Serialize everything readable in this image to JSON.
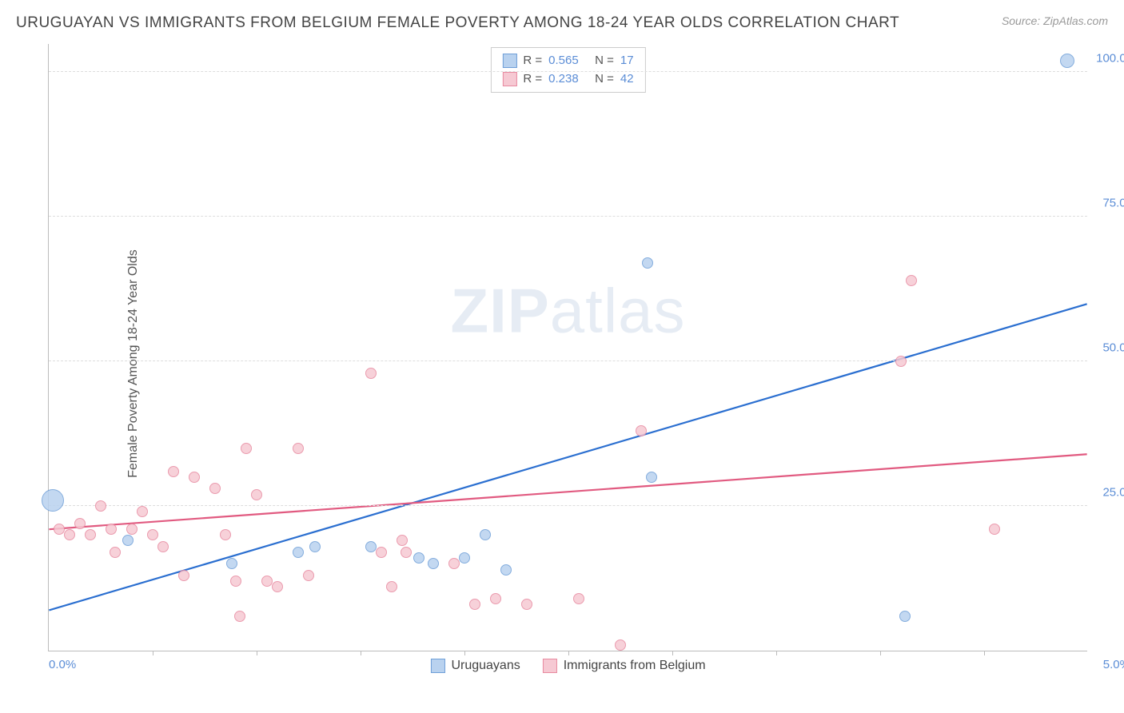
{
  "title": "URUGUAYAN VS IMMIGRANTS FROM BELGIUM FEMALE POVERTY AMONG 18-24 YEAR OLDS CORRELATION CHART",
  "source": "Source: ZipAtlas.com",
  "ylabel": "Female Poverty Among 18-24 Year Olds",
  "watermark_a": "ZIP",
  "watermark_b": "atlas",
  "chart": {
    "type": "scatter",
    "xlim": [
      0,
      5
    ],
    "ylim": [
      0,
      105
    ],
    "x_min_label": "0.0%",
    "x_max_label": "5.0%",
    "y_ticks": [
      25,
      50,
      75,
      100
    ],
    "y_tick_labels": [
      "25.0%",
      "50.0%",
      "75.0%",
      "100.0%"
    ],
    "x_minor_ticks": [
      0.5,
      1.0,
      1.5,
      2.0,
      2.5,
      3.0,
      3.5,
      4.0,
      4.5
    ],
    "background_color": "#ffffff",
    "grid_color": "#dddddd",
    "axis_color": "#bbbbbb",
    "tick_label_color": "#5b8dd6",
    "series": [
      {
        "name": "Uruguayans",
        "fill": "#b9d2ef",
        "stroke": "#6f9fd8",
        "trend_color": "#2b6fd0",
        "r_value": "0.565",
        "n_value": "17",
        "trend": {
          "x1": 0,
          "y1": 7,
          "x2": 5,
          "y2": 60
        },
        "points": [
          {
            "x": 0.02,
            "y": 26,
            "r": 14
          },
          {
            "x": 0.38,
            "y": 19,
            "r": 7
          },
          {
            "x": 0.88,
            "y": 15,
            "r": 7
          },
          {
            "x": 1.2,
            "y": 17,
            "r": 7
          },
          {
            "x": 1.28,
            "y": 18,
            "r": 7
          },
          {
            "x": 1.55,
            "y": 18,
            "r": 7
          },
          {
            "x": 1.78,
            "y": 16,
            "r": 7
          },
          {
            "x": 1.85,
            "y": 15,
            "r": 7
          },
          {
            "x": 2.0,
            "y": 16,
            "r": 7
          },
          {
            "x": 2.1,
            "y": 20,
            "r": 7
          },
          {
            "x": 2.2,
            "y": 14,
            "r": 7
          },
          {
            "x": 2.9,
            "y": 30,
            "r": 7
          },
          {
            "x": 2.88,
            "y": 67,
            "r": 7
          },
          {
            "x": 4.12,
            "y": 6,
            "r": 7
          },
          {
            "x": 4.9,
            "y": 102,
            "r": 9
          }
        ]
      },
      {
        "name": "Immigrants from Belgium",
        "fill": "#f6c9d3",
        "stroke": "#e88aa0",
        "trend_color": "#e15a80",
        "r_value": "0.238",
        "n_value": "42",
        "trend": {
          "x1": 0,
          "y1": 21,
          "x2": 5,
          "y2": 34
        },
        "points": [
          {
            "x": 0.05,
            "y": 21,
            "r": 7
          },
          {
            "x": 0.1,
            "y": 20,
            "r": 7
          },
          {
            "x": 0.15,
            "y": 22,
            "r": 7
          },
          {
            "x": 0.2,
            "y": 20,
            "r": 7
          },
          {
            "x": 0.25,
            "y": 25,
            "r": 7
          },
          {
            "x": 0.3,
            "y": 21,
            "r": 7
          },
          {
            "x": 0.32,
            "y": 17,
            "r": 7
          },
          {
            "x": 0.4,
            "y": 21,
            "r": 7
          },
          {
            "x": 0.45,
            "y": 24,
            "r": 7
          },
          {
            "x": 0.5,
            "y": 20,
            "r": 7
          },
          {
            "x": 0.55,
            "y": 18,
            "r": 7
          },
          {
            "x": 0.6,
            "y": 31,
            "r": 7
          },
          {
            "x": 0.65,
            "y": 13,
            "r": 7
          },
          {
            "x": 0.7,
            "y": 30,
            "r": 7
          },
          {
            "x": 0.8,
            "y": 28,
            "r": 7
          },
          {
            "x": 0.85,
            "y": 20,
            "r": 7
          },
          {
            "x": 0.9,
            "y": 12,
            "r": 7
          },
          {
            "x": 0.92,
            "y": 6,
            "r": 7
          },
          {
            "x": 0.95,
            "y": 35,
            "r": 7
          },
          {
            "x": 1.0,
            "y": 27,
            "r": 7
          },
          {
            "x": 1.05,
            "y": 12,
            "r": 7
          },
          {
            "x": 1.1,
            "y": 11,
            "r": 7
          },
          {
            "x": 1.2,
            "y": 35,
            "r": 7
          },
          {
            "x": 1.25,
            "y": 13,
            "r": 7
          },
          {
            "x": 1.55,
            "y": 48,
            "r": 7
          },
          {
            "x": 1.6,
            "y": 17,
            "r": 7
          },
          {
            "x": 1.65,
            "y": 11,
            "r": 7
          },
          {
            "x": 1.7,
            "y": 19,
            "r": 7
          },
          {
            "x": 1.72,
            "y": 17,
            "r": 7
          },
          {
            "x": 1.95,
            "y": 15,
            "r": 7
          },
          {
            "x": 2.05,
            "y": 8,
            "r": 7
          },
          {
            "x": 2.15,
            "y": 9,
            "r": 7
          },
          {
            "x": 2.3,
            "y": 8,
            "r": 7
          },
          {
            "x": 2.55,
            "y": 9,
            "r": 7
          },
          {
            "x": 2.75,
            "y": 1,
            "r": 7
          },
          {
            "x": 2.85,
            "y": 38,
            "r": 7
          },
          {
            "x": 4.15,
            "y": 64,
            "r": 7
          },
          {
            "x": 4.1,
            "y": 50,
            "r": 7
          },
          {
            "x": 4.55,
            "y": 21,
            "r": 7
          }
        ]
      }
    ],
    "legend_labels": {
      "r_prefix": "R =",
      "n_prefix": "N ="
    }
  }
}
